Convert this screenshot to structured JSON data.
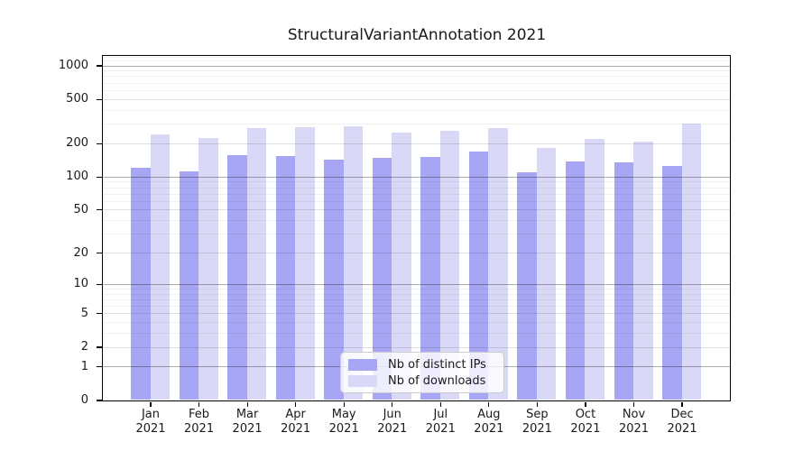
{
  "chart_data": {
    "type": "bar",
    "title": "StructuralVariantAnnotation 2021",
    "categories": [
      "Jan",
      "Feb",
      "Mar",
      "Apr",
      "May",
      "Jun",
      "Jul",
      "Aug",
      "Sep",
      "Oct",
      "Nov",
      "Dec"
    ],
    "year": "2021",
    "series": [
      {
        "name": "Nb of distinct IPs",
        "color": "#a6a6f4",
        "values": [
          119,
          111,
          155,
          152,
          142,
          148,
          151,
          167,
          110,
          136,
          134,
          124
        ]
      },
      {
        "name": "Nb of downloads",
        "color": "#d9d9f7",
        "values": [
          240,
          222,
          274,
          279,
          282,
          251,
          257,
          271,
          181,
          220,
          206,
          300
        ]
      }
    ],
    "xlabel": "",
    "ylabel": "",
    "y_scale": "log1p",
    "y_ticks": [
      0,
      1,
      2,
      5,
      10,
      20,
      50,
      100,
      200,
      500,
      1000
    ],
    "ylim": [
      0,
      1228
    ],
    "grid": true,
    "legend_position": "lower center"
  }
}
